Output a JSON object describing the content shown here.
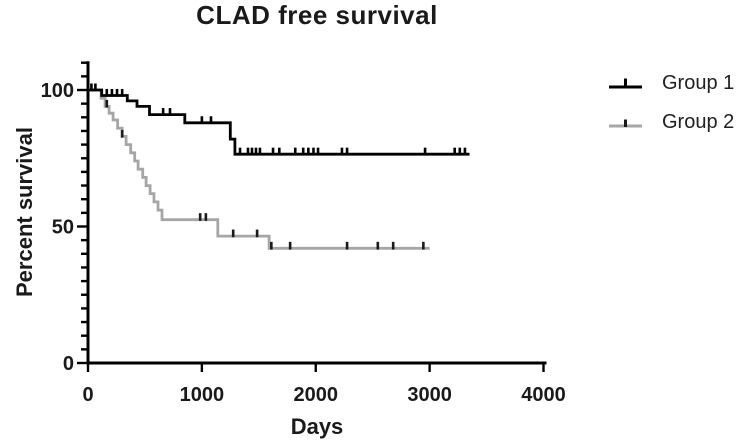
{
  "chart": {
    "title": "CLAD free survival",
    "x_axis": {
      "title": "Days",
      "ticks": [
        0,
        1000,
        2000,
        3000,
        4000
      ],
      "range": [
        0,
        4000
      ]
    },
    "y_axis": {
      "title": "Percent survival",
      "ticks": [
        0,
        50,
        100
      ],
      "minor_tick_step": 5,
      "range": [
        0,
        110
      ]
    }
  },
  "chart_data": {
    "type": "line",
    "subtype": "kaplan-meier-step",
    "title": "CLAD free survival",
    "xlabel": "Days",
    "ylabel": "Percent survival",
    "xlim": [
      0,
      4000
    ],
    "ylim": [
      0,
      110
    ],
    "x_ticks": [
      0,
      1000,
      2000,
      3000,
      4000
    ],
    "y_ticks": [
      0,
      50,
      100
    ],
    "y_minor_tick_step": 5,
    "grid": false,
    "legend_position": "right",
    "axis_color": "#000000",
    "series": [
      {
        "name": "Group 2",
        "color": "#a6a6a6",
        "censor_color": "#1a1a1a",
        "end_day": 3000,
        "steps": [
          [
            0,
            100
          ],
          [
            115,
            97
          ],
          [
            150,
            94
          ],
          [
            185,
            91.5
          ],
          [
            220,
            89
          ],
          [
            260,
            86
          ],
          [
            300,
            83
          ],
          [
            335,
            80
          ],
          [
            375,
            77
          ],
          [
            410,
            74
          ],
          [
            440,
            71
          ],
          [
            480,
            68
          ],
          [
            510,
            65
          ],
          [
            545,
            62
          ],
          [
            580,
            59
          ],
          [
            615,
            56
          ],
          [
            650,
            52.5
          ],
          [
            1140,
            46.5
          ],
          [
            1590,
            42
          ]
        ],
        "censor_marks": [
          [
            165,
            94
          ],
          [
            300,
            83
          ],
          [
            985,
            52.5
          ],
          [
            1035,
            52.5
          ],
          [
            1275,
            46.5
          ],
          [
            1485,
            46.5
          ],
          [
            1610,
            42
          ],
          [
            1775,
            42
          ],
          [
            2275,
            42
          ],
          [
            2545,
            42
          ],
          [
            2680,
            42
          ],
          [
            2945,
            42
          ]
        ]
      },
      {
        "name": "Group 1",
        "color": "#000000",
        "censor_color": "#000000",
        "end_day": 3350,
        "steps": [
          [
            0,
            100
          ],
          [
            120,
            98
          ],
          [
            345,
            96
          ],
          [
            430,
            94
          ],
          [
            540,
            91
          ],
          [
            850,
            88
          ],
          [
            1250,
            82
          ],
          [
            1290,
            76.5
          ]
        ],
        "censor_marks": [
          [
            30,
            100
          ],
          [
            65,
            100
          ],
          [
            165,
            98
          ],
          [
            210,
            98
          ],
          [
            255,
            98
          ],
          [
            300,
            98
          ],
          [
            660,
            91
          ],
          [
            720,
            91
          ],
          [
            1000,
            88
          ],
          [
            1080,
            88
          ],
          [
            1335,
            76.5
          ],
          [
            1405,
            76.5
          ],
          [
            1440,
            76.5
          ],
          [
            1475,
            76.5
          ],
          [
            1510,
            76.5
          ],
          [
            1625,
            76.5
          ],
          [
            1680,
            76.5
          ],
          [
            1820,
            76.5
          ],
          [
            1890,
            76.5
          ],
          [
            1935,
            76.5
          ],
          [
            1980,
            76.5
          ],
          [
            2020,
            76.5
          ],
          [
            2230,
            76.5
          ],
          [
            2275,
            76.5
          ],
          [
            2960,
            76.5
          ],
          [
            3220,
            76.5
          ],
          [
            3265,
            76.5
          ],
          [
            3310,
            76.5
          ]
        ]
      }
    ],
    "legend_order": [
      "Group 1",
      "Group 2"
    ]
  }
}
